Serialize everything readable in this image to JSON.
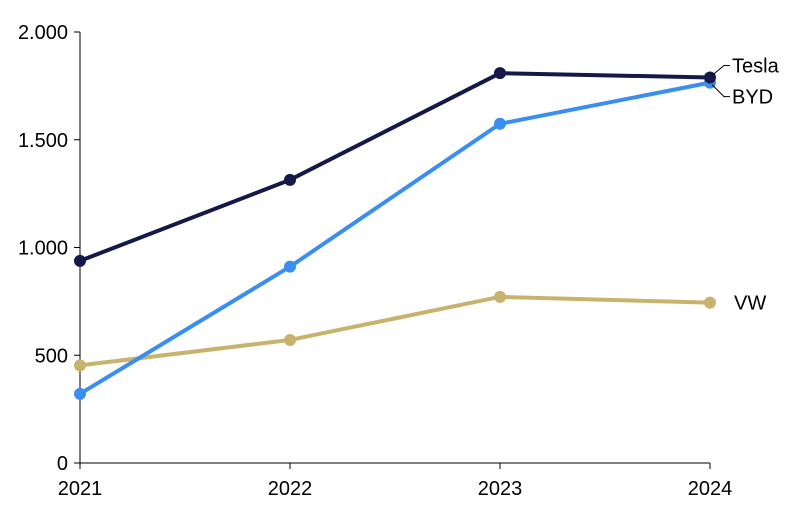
{
  "chart_data": {
    "type": "line",
    "title": "",
    "xlabel": "",
    "ylabel": "",
    "x": [
      "2021",
      "2022",
      "2023",
      "2024"
    ],
    "ylim": [
      0,
      2000
    ],
    "yticks": [
      0,
      500,
      1000,
      1500,
      2000
    ],
    "ytick_labels": [
      "0",
      "500",
      "1.000",
      "1.500",
      "2.000"
    ],
    "grid": false,
    "legend": "inline-right",
    "series": [
      {
        "name": "Tesla",
        "color": "#14194a",
        "values": [
          938,
          1314,
          1809,
          1789
        ]
      },
      {
        "name": "BYD",
        "color": "#3a8ef0",
        "values": [
          321,
          911,
          1574,
          1765
        ]
      },
      {
        "name": "VW",
        "color": "#c7b36e",
        "values": [
          453,
          571,
          771,
          744
        ]
      }
    ]
  }
}
